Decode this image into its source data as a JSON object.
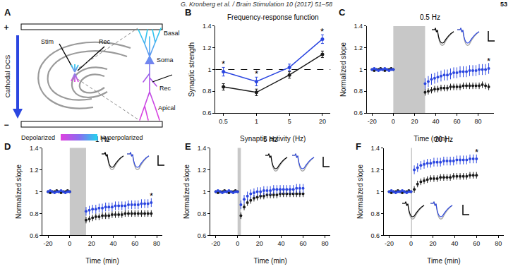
{
  "header": {
    "running_head": "G. Kronberg et al. / Brain Stimulation 10 (2017) 51–58",
    "page": "53"
  },
  "diagram": {
    "panel": "A",
    "polarity": [
      "+",
      "−"
    ],
    "arrow_label": "Cathodal DCS",
    "hippocampus_labels": [
      "Stim",
      "Rec"
    ],
    "neuron_labels": [
      "Basal",
      "Soma",
      "Rec",
      "Apical"
    ],
    "colorbar": [
      "Depolarized",
      "Hyperpolarized"
    ]
  },
  "chart_data": [
    {
      "panel": "B",
      "type": "line",
      "title": "Frequency-response function",
      "x_label": "Synaptic activity (Hz)",
      "y_label": "Synaptic strength",
      "categories": [
        "0.5",
        "1",
        "5",
        "20"
      ],
      "ylim": [
        0.6,
        1.4
      ],
      "yticks": [
        0.6,
        0.8,
        1,
        1.2,
        1.4
      ],
      "grid": false,
      "marker": "circle",
      "reference_line": 1,
      "series": [
        {
          "color": "#1a1a1a",
          "values": [
            0.84,
            0.79,
            0.95,
            1.14
          ],
          "error": [
            0.03,
            0.03,
            0.03,
            0.03
          ]
        },
        {
          "color": "#2b46e0",
          "values": [
            0.98,
            0.89,
            1.02,
            1.28
          ],
          "error": [
            0.04,
            0.04,
            0.03,
            0.04
          ]
        }
      ],
      "annotations": [
        {
          "x": "0.5",
          "y": 1.05,
          "text": "*"
        },
        {
          "x": "1",
          "y": 0.96,
          "text": "*"
        },
        {
          "x": "20",
          "y": 1.35,
          "text": "*"
        }
      ]
    },
    {
      "panel": "C",
      "type": "scatter",
      "title": "0.5 Hz",
      "x_label": "Time (min)",
      "y_label": "Normalized slope",
      "xlim": [
        -25,
        95
      ],
      "xticks": [
        -20,
        0,
        20,
        40,
        60,
        80
      ],
      "ylim": [
        0.6,
        1.4
      ],
      "yticks": [
        0.6,
        0.8,
        1,
        1.2,
        1.4
      ],
      "grid": false,
      "marker": "circle",
      "stim": [
        0,
        30
      ],
      "series": [
        {
          "color": "#1a1a1a",
          "x": [
            -20,
            -18,
            -16,
            -14,
            -12,
            -10,
            -8,
            -6,
            -4,
            -2,
            0,
            30,
            33,
            36,
            39,
            42,
            45,
            48,
            51,
            54,
            57,
            60,
            63,
            66,
            69,
            72,
            75,
            78,
            81,
            84,
            87,
            90
          ],
          "values": [
            1.0,
            0.99,
            1.0,
            1.0,
            1.01,
            1.0,
            0.99,
            1.0,
            1.0,
            1.01,
            1.0,
            0.79,
            0.8,
            0.81,
            0.82,
            0.82,
            0.83,
            0.83,
            0.83,
            0.84,
            0.84,
            0.84,
            0.84,
            0.85,
            0.85,
            0.85,
            0.85,
            0.85,
            0.85,
            0.86,
            0.85,
            0.84
          ],
          "error": [
            0.01,
            0.01,
            0.01,
            0.01,
            0.01,
            0.01,
            0.01,
            0.01,
            0.01,
            0.01,
            0.01,
            0.03,
            0.03,
            0.03,
            0.03,
            0.03,
            0.03,
            0.03,
            0.03,
            0.03,
            0.03,
            0.03,
            0.03,
            0.03,
            0.03,
            0.03,
            0.03,
            0.03,
            0.03,
            0.03,
            0.03,
            0.03
          ]
        },
        {
          "color": "#2b46e0",
          "x": [
            -20,
            -18,
            -16,
            -14,
            -12,
            -10,
            -8,
            -6,
            -4,
            -2,
            0,
            30,
            33,
            36,
            39,
            42,
            45,
            48,
            51,
            54,
            57,
            60,
            63,
            66,
            69,
            72,
            75,
            78,
            81,
            84,
            87,
            90
          ],
          "values": [
            1.0,
            1.01,
            1.0,
            0.99,
            1.0,
            1.0,
            1.01,
            1.0,
            0.99,
            1.0,
            1.0,
            0.87,
            0.89,
            0.91,
            0.92,
            0.93,
            0.94,
            0.95,
            0.95,
            0.96,
            0.97,
            0.97,
            0.98,
            0.98,
            0.98,
            0.99,
            0.99,
            0.99,
            1.0,
            1.0,
            1.0,
            1.01
          ],
          "error": [
            0.01,
            0.01,
            0.01,
            0.01,
            0.01,
            0.01,
            0.01,
            0.01,
            0.01,
            0.01,
            0.01,
            0.05,
            0.05,
            0.05,
            0.05,
            0.05,
            0.05,
            0.05,
            0.05,
            0.05,
            0.05,
            0.05,
            0.05,
            0.05,
            0.05,
            0.05,
            0.05,
            0.05,
            0.05,
            0.05,
            0.05,
            0.05
          ]
        }
      ],
      "annotations": [
        {
          "x": 90,
          "y": 1.08,
          "text": "*"
        }
      ]
    },
    {
      "panel": "D",
      "type": "scatter",
      "title": "1 Hz",
      "x_label": "Time (min)",
      "y_label": "Normalized slope",
      "xlim": [
        -25,
        85
      ],
      "xticks": [
        -20,
        0,
        20,
        40,
        60,
        80
      ],
      "ylim": [
        0.6,
        1.4
      ],
      "yticks": [
        0.6,
        0.8,
        1,
        1.2,
        1.4
      ],
      "grid": false,
      "marker": "circle",
      "stim": [
        0,
        15
      ],
      "series": [
        {
          "color": "#1a1a1a",
          "x": [
            -20,
            -18,
            -16,
            -14,
            -12,
            -10,
            -8,
            -6,
            -4,
            -2,
            0,
            15,
            18,
            21,
            24,
            27,
            30,
            33,
            36,
            39,
            42,
            45,
            48,
            51,
            54,
            57,
            60,
            63,
            66,
            69,
            72,
            75
          ],
          "values": [
            1.0,
            0.99,
            1.0,
            1.0,
            1.01,
            1.0,
            0.99,
            1.0,
            1.0,
            1.01,
            1.0,
            0.74,
            0.75,
            0.76,
            0.77,
            0.77,
            0.78,
            0.78,
            0.78,
            0.79,
            0.79,
            0.79,
            0.79,
            0.8,
            0.8,
            0.8,
            0.8,
            0.8,
            0.8,
            0.8,
            0.8,
            0.8
          ],
          "error": [
            0.01,
            0.01,
            0.01,
            0.01,
            0.01,
            0.01,
            0.01,
            0.01,
            0.01,
            0.01,
            0.01,
            0.03,
            0.03,
            0.03,
            0.03,
            0.03,
            0.03,
            0.03,
            0.03,
            0.03,
            0.03,
            0.03,
            0.03,
            0.03,
            0.03,
            0.03,
            0.03,
            0.03,
            0.03,
            0.03,
            0.03,
            0.03
          ]
        },
        {
          "color": "#2b46e0",
          "x": [
            -20,
            -18,
            -16,
            -14,
            -12,
            -10,
            -8,
            -6,
            -4,
            -2,
            0,
            15,
            18,
            21,
            24,
            27,
            30,
            33,
            36,
            39,
            42,
            45,
            48,
            51,
            54,
            57,
            60,
            63,
            66,
            69,
            72,
            75
          ],
          "values": [
            1.0,
            1.01,
            1.0,
            0.99,
            1.0,
            1.0,
            1.01,
            1.0,
            0.99,
            1.0,
            1.0,
            0.82,
            0.83,
            0.84,
            0.84,
            0.85,
            0.85,
            0.86,
            0.86,
            0.86,
            0.87,
            0.87,
            0.87,
            0.87,
            0.88,
            0.88,
            0.88,
            0.88,
            0.89,
            0.89,
            0.89,
            0.9
          ],
          "error": [
            0.01,
            0.01,
            0.01,
            0.01,
            0.01,
            0.01,
            0.01,
            0.01,
            0.01,
            0.01,
            0.01,
            0.04,
            0.04,
            0.04,
            0.04,
            0.04,
            0.04,
            0.04,
            0.04,
            0.04,
            0.04,
            0.04,
            0.04,
            0.04,
            0.04,
            0.04,
            0.04,
            0.04,
            0.04,
            0.04,
            0.04,
            0.04
          ]
        }
      ],
      "annotations": [
        {
          "x": 75,
          "y": 0.96,
          "text": "*"
        }
      ]
    },
    {
      "panel": "E",
      "type": "scatter",
      "title": "5 Hz",
      "x_label": "Time (min)",
      "y_label": "Normalized slope",
      "xlim": [
        -25,
        85
      ],
      "xticks": [
        -20,
        0,
        20,
        40,
        60,
        80
      ],
      "ylim": [
        0.6,
        1.4
      ],
      "yticks": [
        0.6,
        0.8,
        1,
        1.2,
        1.4
      ],
      "grid": false,
      "marker": "circle",
      "stim": [
        0,
        3
      ],
      "series": [
        {
          "color": "#1a1a1a",
          "x": [
            -20,
            -18,
            -16,
            -14,
            -12,
            -10,
            -8,
            -6,
            -4,
            -2,
            0,
            3,
            6,
            9,
            12,
            15,
            18,
            21,
            24,
            27,
            30,
            33,
            36,
            39,
            42,
            45,
            48,
            51,
            54,
            57,
            60
          ],
          "values": [
            1.0,
            0.99,
            1.0,
            1.0,
            1.01,
            1.0,
            0.99,
            1.0,
            1.0,
            1.01,
            1.0,
            0.78,
            0.86,
            0.9,
            0.92,
            0.94,
            0.95,
            0.96,
            0.96,
            0.97,
            0.97,
            0.97,
            0.97,
            0.98,
            0.98,
            0.98,
            0.98,
            0.98,
            0.98,
            0.98,
            0.98
          ],
          "error": [
            0.01,
            0.01,
            0.01,
            0.01,
            0.01,
            0.01,
            0.01,
            0.01,
            0.01,
            0.01,
            0.01,
            0.03,
            0.03,
            0.03,
            0.03,
            0.03,
            0.03,
            0.03,
            0.03,
            0.03,
            0.03,
            0.03,
            0.03,
            0.03,
            0.03,
            0.03,
            0.03,
            0.03,
            0.03,
            0.03,
            0.03
          ]
        },
        {
          "color": "#2b46e0",
          "x": [
            -20,
            -18,
            -16,
            -14,
            -12,
            -10,
            -8,
            -6,
            -4,
            -2,
            0,
            3,
            6,
            9,
            12,
            15,
            18,
            21,
            24,
            27,
            30,
            33,
            36,
            39,
            42,
            45,
            48,
            51,
            54,
            57,
            60
          ],
          "values": [
            1.0,
            1.01,
            1.0,
            0.99,
            1.0,
            1.0,
            1.01,
            1.0,
            0.99,
            1.0,
            1.0,
            0.88,
            0.93,
            0.96,
            0.98,
            0.99,
            1.0,
            1.0,
            1.01,
            1.01,
            1.01,
            1.02,
            1.02,
            1.02,
            1.02,
            1.02,
            1.02,
            1.02,
            1.03,
            1.03,
            1.03
          ],
          "error": [
            0.01,
            0.01,
            0.01,
            0.01,
            0.01,
            0.01,
            0.01,
            0.01,
            0.01,
            0.01,
            0.01,
            0.04,
            0.04,
            0.04,
            0.04,
            0.04,
            0.04,
            0.04,
            0.04,
            0.04,
            0.04,
            0.04,
            0.04,
            0.04,
            0.04,
            0.04,
            0.04,
            0.04,
            0.04,
            0.04,
            0.04
          ]
        }
      ]
    },
    {
      "panel": "F",
      "type": "scatter",
      "title": "20 Hz",
      "x_label": "Time (min)",
      "y_label": "Normalized slope",
      "xlim": [
        -25,
        85
      ],
      "xticks": [
        -20,
        0,
        20,
        40,
        60,
        80
      ],
      "ylim": [
        0.6,
        1.4
      ],
      "yticks": [
        0.6,
        0.8,
        1,
        1.2,
        1.4
      ],
      "grid": false,
      "marker": "circle",
      "stim": [
        0,
        1
      ],
      "series": [
        {
          "color": "#1a1a1a",
          "x": [
            -20,
            -18,
            -16,
            -14,
            -12,
            -10,
            -8,
            -6,
            -4,
            -2,
            0,
            3,
            6,
            9,
            12,
            15,
            18,
            21,
            24,
            27,
            30,
            33,
            36,
            39,
            42,
            45,
            48,
            51,
            54,
            57,
            60
          ],
          "values": [
            1.0,
            0.99,
            1.0,
            1.0,
            1.01,
            1.0,
            0.99,
            1.0,
            1.0,
            1.01,
            1.0,
            1.02,
            1.07,
            1.09,
            1.1,
            1.11,
            1.12,
            1.12,
            1.12,
            1.13,
            1.13,
            1.13,
            1.13,
            1.14,
            1.14,
            1.14,
            1.14,
            1.14,
            1.15,
            1.15,
            1.15
          ],
          "error": [
            0.01,
            0.01,
            0.01,
            0.01,
            0.01,
            0.01,
            0.01,
            0.01,
            0.01,
            0.01,
            0.01,
            0.03,
            0.03,
            0.03,
            0.03,
            0.03,
            0.03,
            0.03,
            0.03,
            0.03,
            0.03,
            0.03,
            0.03,
            0.03,
            0.03,
            0.03,
            0.03,
            0.03,
            0.03,
            0.03,
            0.03
          ]
        },
        {
          "color": "#2b46e0",
          "x": [
            -20,
            -18,
            -16,
            -14,
            -12,
            -10,
            -8,
            -6,
            -4,
            -2,
            0,
            3,
            6,
            9,
            12,
            15,
            18,
            21,
            24,
            27,
            30,
            33,
            36,
            39,
            42,
            45,
            48,
            51,
            54,
            57,
            60
          ],
          "values": [
            1.0,
            1.01,
            1.0,
            0.99,
            1.0,
            1.0,
            1.01,
            1.0,
            0.99,
            1.0,
            1.0,
            1.2,
            1.22,
            1.24,
            1.25,
            1.26,
            1.26,
            1.27,
            1.27,
            1.27,
            1.28,
            1.28,
            1.28,
            1.28,
            1.29,
            1.29,
            1.29,
            1.29,
            1.3,
            1.3,
            1.3
          ],
          "error": [
            0.01,
            0.01,
            0.01,
            0.01,
            0.01,
            0.01,
            0.01,
            0.01,
            0.01,
            0.01,
            0.01,
            0.04,
            0.04,
            0.04,
            0.04,
            0.04,
            0.04,
            0.04,
            0.04,
            0.04,
            0.04,
            0.04,
            0.04,
            0.04,
            0.04,
            0.04,
            0.04,
            0.04,
            0.04,
            0.04,
            0.04
          ]
        }
      ],
      "annotations": [
        {
          "x": 60,
          "y": 1.36,
          "text": "*"
        }
      ]
    }
  ]
}
